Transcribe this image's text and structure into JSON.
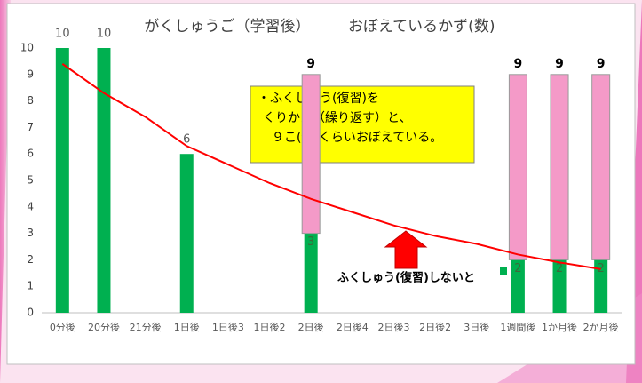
{
  "chart_data": {
    "type": "bar",
    "title": "がくしゅうご（学習後）　　　おぼえているかず(数)",
    "categories": [
      "0分後",
      "20分後",
      "21分後",
      "1日後",
      "1日後3",
      "1日後2",
      "2日後",
      "2日後4",
      "2日後3",
      "2日後2",
      "3日後",
      "1週間後",
      "1か月後",
      "2か月後"
    ],
    "series": [
      {
        "name": "ふくしゅう(復習)しないと",
        "color": "#00b050",
        "values": [
          10,
          10,
          null,
          6,
          null,
          null,
          3,
          null,
          null,
          null,
          null,
          2,
          2,
          2
        ]
      },
      {
        "color": "#f49ac8",
        "values": [
          null,
          null,
          null,
          null,
          null,
          null,
          6,
          null,
          null,
          null,
          null,
          7,
          7,
          7
        ]
      },
      {
        "type": "line",
        "color": "#ff0000",
        "values": [
          9.4,
          8.3,
          7.4,
          6.3,
          5.6,
          4.9,
          4.3,
          3.8,
          3.3,
          2.9,
          2.6,
          2.2,
          1.9,
          1.65
        ]
      }
    ],
    "total_labels": [
      null,
      null,
      null,
      null,
      null,
      null,
      9,
      null,
      null,
      null,
      null,
      9,
      9,
      9
    ],
    "note_box": [
      "・ふくしゅう(復習)を",
      "くりかえ（繰り返す）と、",
      "９こ(個)くらいおぼえている。"
    ],
    "ylim": [
      0,
      10
    ],
    "yticks": [
      0,
      1,
      2,
      3,
      4,
      5,
      6,
      7,
      8,
      9,
      10
    ],
    "grid": false
  }
}
